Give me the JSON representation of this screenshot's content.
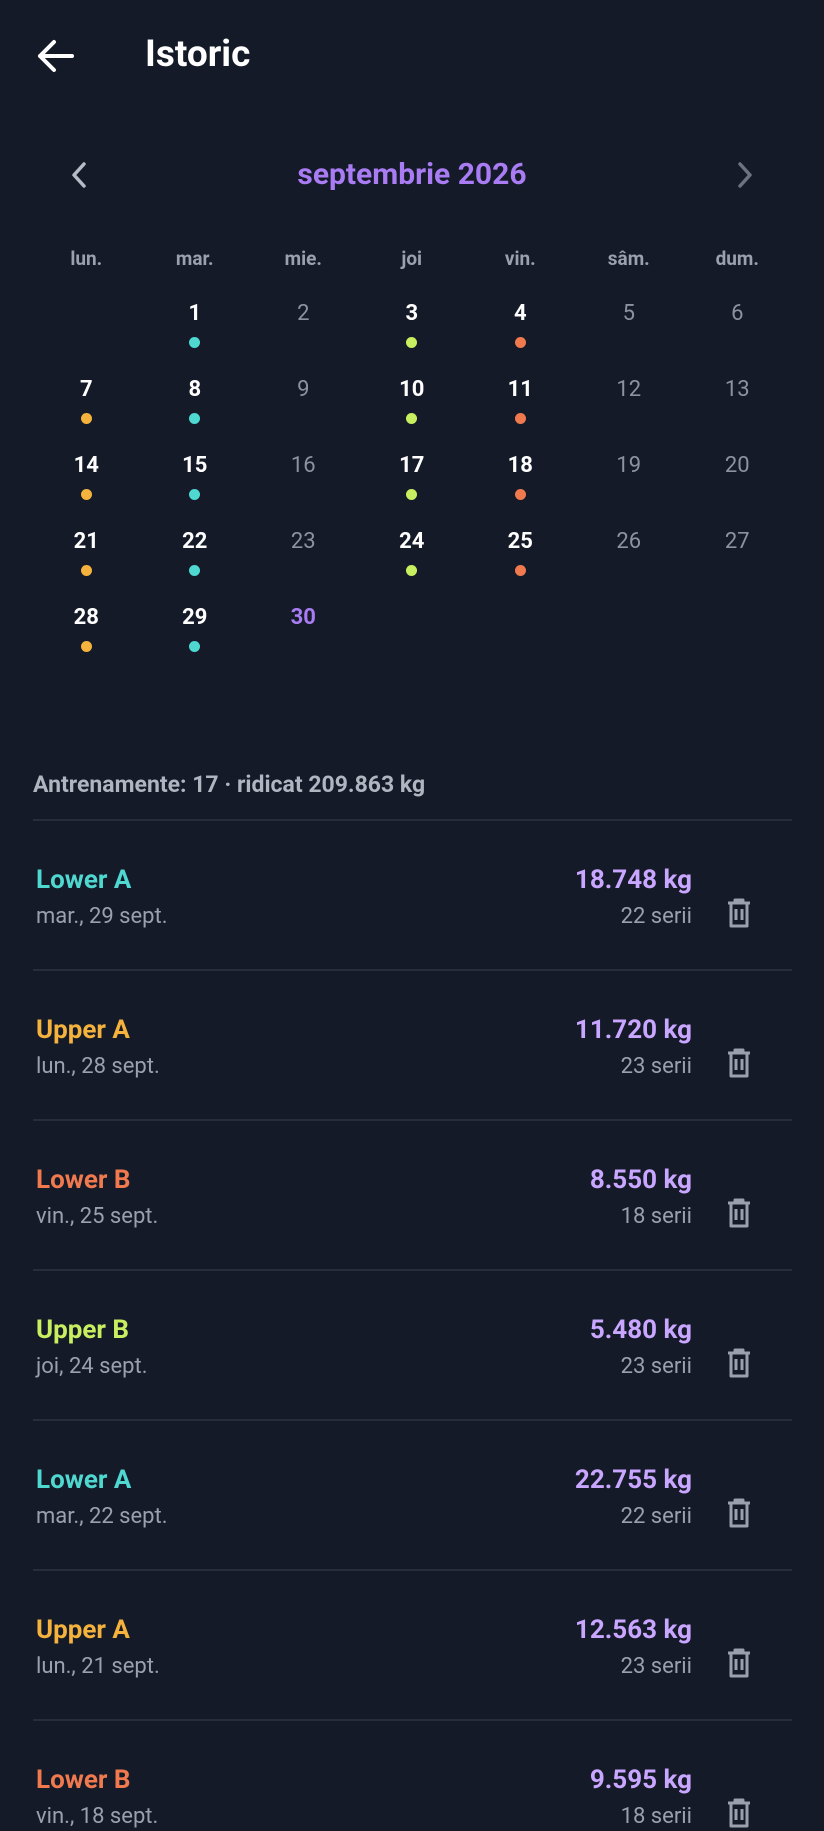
{
  "header": {
    "title": "Istoric"
  },
  "calendar": {
    "month": "septembrie 2026",
    "weekdays": [
      "lun.",
      "mar.",
      "mie.",
      "joi",
      "vin.",
      "sâm.",
      "dum."
    ],
    "days": [
      {
        "day": 1,
        "dot": "#4fd8d0"
      },
      {
        "day": 2
      },
      {
        "day": 3,
        "dot": "#c8ef5f"
      },
      {
        "day": 4,
        "dot": "#f07a4e"
      },
      {
        "day": 5
      },
      {
        "day": 6
      },
      {
        "day": 7,
        "dot": "#f5b23c"
      },
      {
        "day": 8,
        "dot": "#4fd8d0"
      },
      {
        "day": 9
      },
      {
        "day": 10,
        "dot": "#c8ef5f"
      },
      {
        "day": 11,
        "dot": "#f07a4e"
      },
      {
        "day": 12
      },
      {
        "day": 13
      },
      {
        "day": 14,
        "dot": "#f5b23c"
      },
      {
        "day": 15,
        "dot": "#4fd8d0"
      },
      {
        "day": 16
      },
      {
        "day": 17,
        "dot": "#c8ef5f"
      },
      {
        "day": 18,
        "dot": "#f07a4e"
      },
      {
        "day": 19
      },
      {
        "day": 20
      },
      {
        "day": 21,
        "dot": "#f5b23c"
      },
      {
        "day": 22,
        "dot": "#4fd8d0"
      },
      {
        "day": 23
      },
      {
        "day": 24,
        "dot": "#c8ef5f"
      },
      {
        "day": 25,
        "dot": "#f07a4e"
      },
      {
        "day": 26
      },
      {
        "day": 27
      },
      {
        "day": 28,
        "dot": "#f5b23c"
      },
      {
        "day": 29,
        "dot": "#4fd8d0"
      },
      {
        "day": 30,
        "today": true
      }
    ]
  },
  "summary": "Antrenamente: 17 · ridicat 209.863 kg",
  "entries": [
    {
      "name": "Lower A",
      "color": "#4fd8d0",
      "date": "mar., 29 sept.",
      "volume": "18.748 kg",
      "sets": "22 serii"
    },
    {
      "name": "Upper A",
      "color": "#f5b23c",
      "date": "lun., 28 sept.",
      "volume": "11.720 kg",
      "sets": "23 serii"
    },
    {
      "name": "Lower B",
      "color": "#f07a4e",
      "date": "vin., 25 sept.",
      "volume": "8.550 kg",
      "sets": "18 serii"
    },
    {
      "name": "Upper B",
      "color": "#c8ef5f",
      "date": "joi, 24 sept.",
      "volume": "5.480 kg",
      "sets": "23 serii"
    },
    {
      "name": "Lower A",
      "color": "#4fd8d0",
      "date": "mar., 22 sept.",
      "volume": "22.755 kg",
      "sets": "22 serii"
    },
    {
      "name": "Upper A",
      "color": "#f5b23c",
      "date": "lun., 21 sept.",
      "volume": "12.563 kg",
      "sets": "23 serii"
    },
    {
      "name": "Lower B",
      "color": "#f07a4e",
      "date": "vin., 18 sept.",
      "volume": "9.595 kg",
      "sets": "18 serii"
    }
  ]
}
